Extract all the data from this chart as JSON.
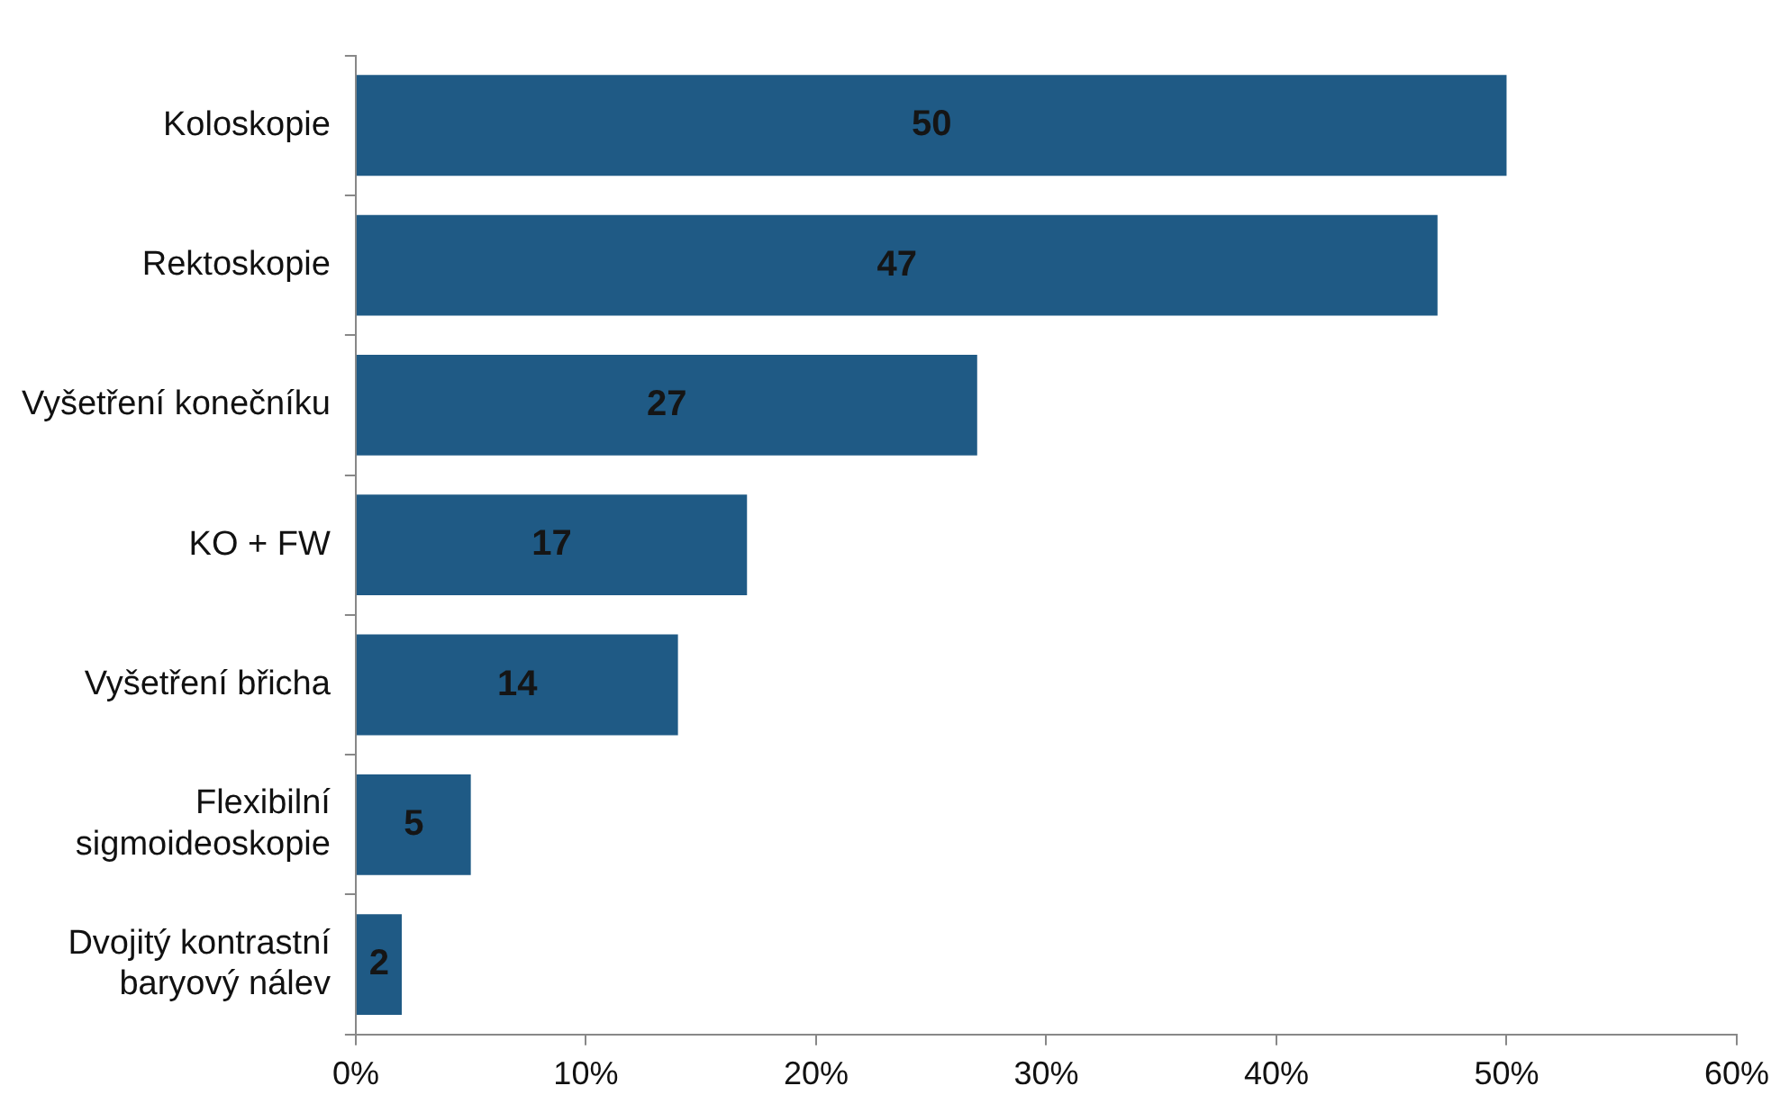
{
  "chart_data": {
    "type": "bar",
    "orientation": "horizontal",
    "categories": [
      "Koloskopie",
      "Rektoskopie",
      "Vyšetření konečníku",
      "KO + FW",
      "Vyšetření břicha",
      "Flexibilní sigmoideoskopie",
      "Dvojitý kontrastní baryový nálev"
    ],
    "values": [
      50,
      47,
      27,
      17,
      14,
      5,
      2
    ],
    "color": "#1f5a85",
    "data_labels": true,
    "xlim": [
      0,
      60
    ],
    "xticks": [
      {
        "value": 0,
        "label": "0%"
      },
      {
        "value": 10,
        "label": "10%"
      },
      {
        "value": 20,
        "label": "20%"
      },
      {
        "value": 30,
        "label": "30%"
      },
      {
        "value": 40,
        "label": "40%"
      },
      {
        "value": 50,
        "label": "50%"
      },
      {
        "value": 60,
        "label": "60%"
      }
    ],
    "grid": false,
    "legend": false
  }
}
